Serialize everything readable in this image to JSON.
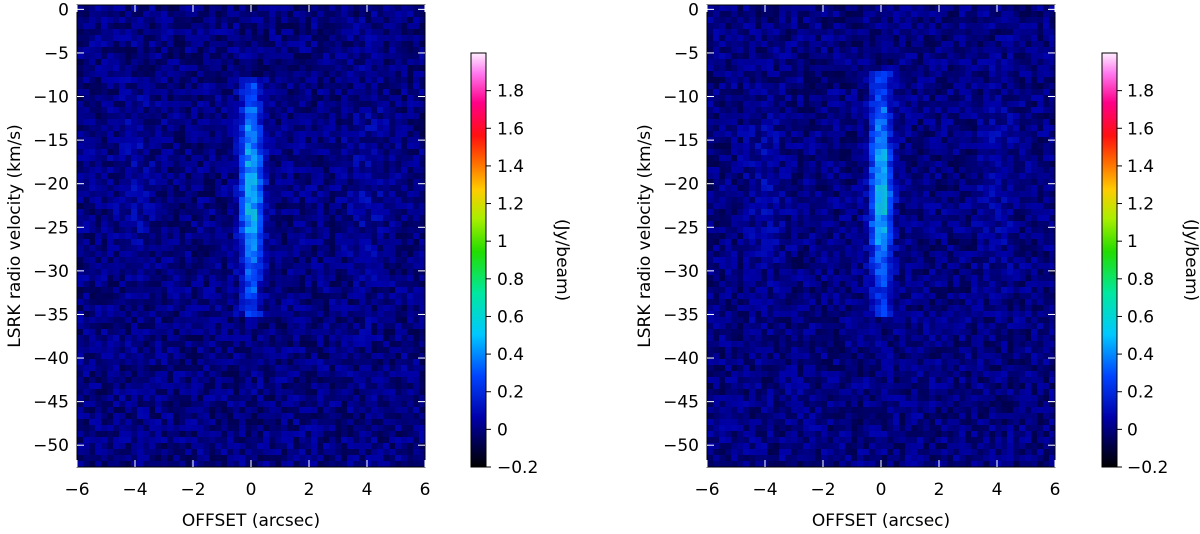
{
  "chart_data": [
    {
      "type": "heatmap",
      "xlabel": "OFFSET (arcsec)",
      "ylabel": "LSRK radio velocity  (km/s)",
      "xlim": [
        -6,
        6
      ],
      "ylim": [
        -52.5,
        0.5
      ],
      "xticks": [
        -6,
        -4,
        -2,
        0,
        2,
        4,
        6
      ],
      "yticks": [
        0,
        -5,
        -10,
        -15,
        -20,
        -25,
        -30,
        -35,
        -40,
        -45,
        -50
      ],
      "colorbar": {
        "label": "(Jy/beam)",
        "range": [
          -0.2,
          2.0
        ],
        "ticks": [
          "-0.2",
          "0",
          "0.2",
          "0.4",
          "0.6",
          "0.8",
          "1",
          "1.2",
          "1.4",
          "1.6",
          "1.8"
        ]
      },
      "feature": {
        "center_offset_arcsec": 0.0,
        "velocity_extent_kms": [
          -35,
          -8
        ],
        "peak_velocity_kms": -21,
        "peak_intensity_jy_beam": 0.6
      }
    },
    {
      "type": "heatmap",
      "xlabel": "OFFSET (arcsec)",
      "ylabel": "LSRK radio velocity  (km/s)",
      "xlim": [
        -6,
        6
      ],
      "ylim": [
        -52.5,
        0.5
      ],
      "xticks": [
        -6,
        -4,
        -2,
        0,
        2,
        4,
        6
      ],
      "yticks": [
        0,
        -5,
        -10,
        -15,
        -20,
        -25,
        -30,
        -35,
        -40,
        -45,
        -50
      ],
      "colorbar": {
        "label": "(Jy/beam)",
        "range": [
          -0.2,
          2.0
        ],
        "ticks": [
          "-0.2",
          "0",
          "0.2",
          "0.4",
          "0.6",
          "0.8",
          "1",
          "1.2",
          "1.4",
          "1.6",
          "1.8"
        ]
      },
      "feature": {
        "center_offset_arcsec": 0.0,
        "velocity_extent_kms": [
          -35,
          -7
        ],
        "peak_velocity_kms": -21,
        "peak_intensity_jy_beam": 0.6
      }
    }
  ]
}
